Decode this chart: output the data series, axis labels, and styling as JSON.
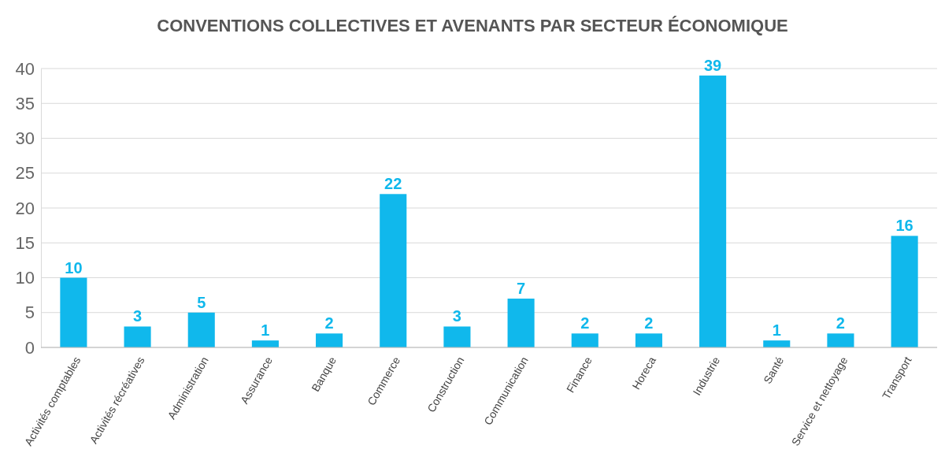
{
  "chart_data": {
    "type": "bar",
    "title": "CONVENTIONS COLLECTIVES ET AVENANTS PAR SECTEUR ÉCONOMIQUE",
    "categories": [
      "Activités comptables",
      "Activités récréatives",
      "Administration",
      "Assurance",
      "Banque",
      "Commerce",
      "Construction",
      "Communication",
      "Finance",
      "Horeca",
      "Industrie",
      "Santé",
      "Service et nettoyage",
      "Transport"
    ],
    "values": [
      10,
      3,
      5,
      1,
      2,
      22,
      3,
      7,
      2,
      2,
      39,
      1,
      2,
      16
    ],
    "color": "#10b8ec",
    "ylim": [
      0,
      40
    ],
    "yticks": [
      0,
      5,
      10,
      15,
      20,
      25,
      30,
      35,
      40
    ],
    "grid": "y",
    "data_labels": true
  }
}
